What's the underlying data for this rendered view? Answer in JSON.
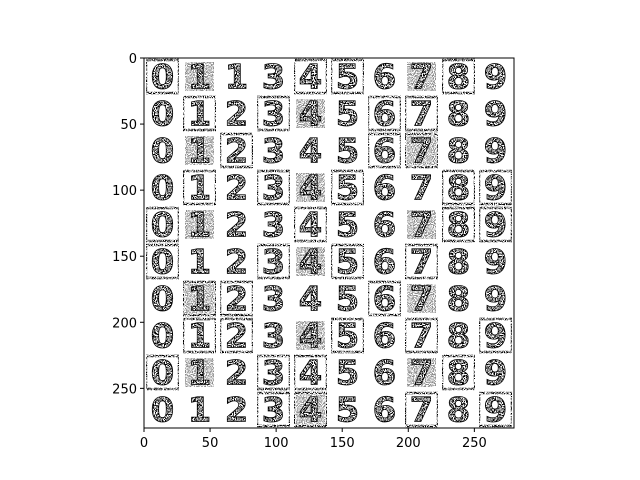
{
  "chart_data": {
    "type": "heatmap",
    "title": "",
    "xlabel": "",
    "ylabel": "",
    "xlim": [
      0,
      280
    ],
    "ylim": [
      280,
      0
    ],
    "x_ticks": [
      0,
      50,
      100,
      150,
      200,
      250
    ],
    "y_ticks": [
      0,
      50,
      100,
      150,
      200,
      250
    ],
    "colormap": "binary",
    "colors": {
      "ink": "#000000",
      "paper": "#ffffff"
    },
    "grid_rows": 10,
    "grid_cols": 10,
    "cell_size": 28,
    "digit_grid": [
      [
        "0",
        "1",
        "1",
        "3",
        "4",
        "5",
        "6",
        "7",
        "8",
        "9"
      ],
      [
        "0",
        "1",
        "2",
        "3",
        "4",
        "5",
        "6",
        "7",
        "8",
        "9"
      ],
      [
        "0",
        "1",
        "2",
        "3",
        "4",
        "5",
        "6",
        "7",
        "8",
        "9"
      ],
      [
        "0",
        "1",
        "2",
        "3",
        "4",
        "5",
        "6",
        "7",
        "8",
        "9"
      ],
      [
        "0",
        "1",
        "2",
        "3",
        "4",
        "5",
        "6",
        "7",
        "8",
        "9"
      ],
      [
        "0",
        "1",
        "2",
        "3",
        "4",
        "5",
        "6",
        "7",
        "8",
        "9"
      ],
      [
        "0",
        "1",
        "2",
        "3",
        "4",
        "5",
        "6",
        "7",
        "8",
        "9"
      ],
      [
        "0",
        "1",
        "2",
        "3",
        "4",
        "5",
        "6",
        "7",
        "8",
        "9"
      ],
      [
        "0",
        "1",
        "2",
        "3",
        "4",
        "5",
        "6",
        "7",
        "8",
        "9"
      ],
      [
        "0",
        "1",
        "2",
        "3",
        "4",
        "5",
        "6",
        "7",
        "8",
        "9"
      ]
    ],
    "grid": false,
    "legend": "none"
  }
}
